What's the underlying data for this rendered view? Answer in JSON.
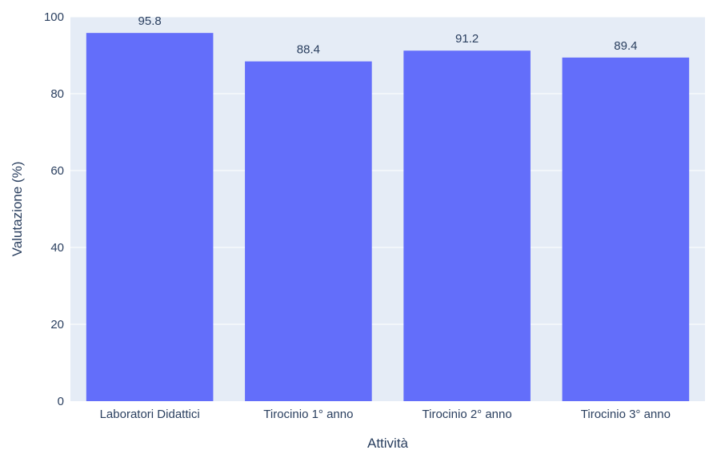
{
  "chart_data": {
    "type": "bar",
    "categories": [
      "Laboratori Didattici",
      "Tirocinio 1° anno",
      "Tirocinio 2° anno",
      "Tirocinio 3° anno"
    ],
    "values": [
      95.8,
      88.4,
      91.2,
      89.4
    ],
    "value_labels": [
      "95.8",
      "88.4",
      "91.2",
      "89.4"
    ],
    "title": "",
    "xlabel": "Attività",
    "ylabel": "Valutazione (%)",
    "ylim": [
      0,
      100
    ],
    "yticks": [
      0,
      20,
      40,
      60,
      80,
      100
    ],
    "grid": true,
    "legend": "none",
    "colors": {
      "bar": "#636efa",
      "plot_background": "#e5ecf6",
      "gridline": "#ffffff",
      "text": "#2a3f5f"
    }
  }
}
